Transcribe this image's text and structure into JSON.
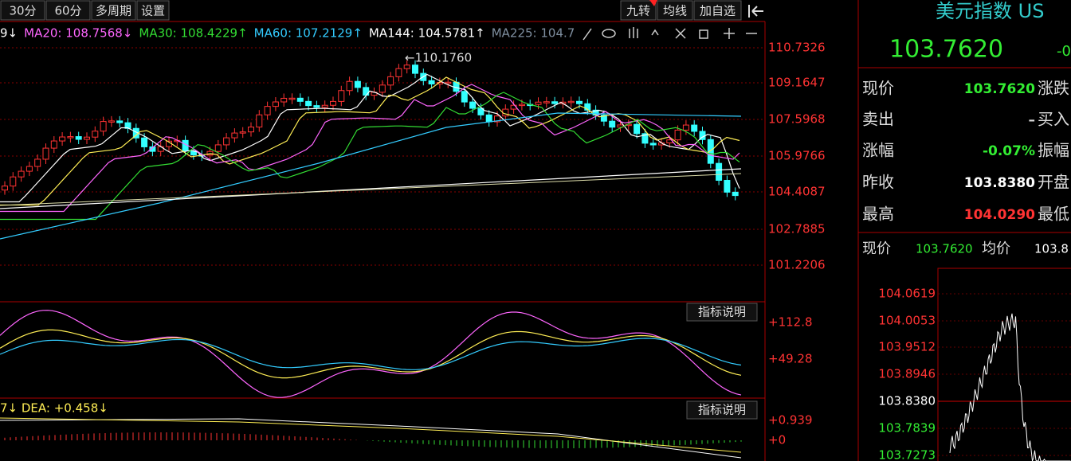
{
  "toolbar": {
    "left": [
      "30分",
      "60分",
      "多周期",
      "设置"
    ],
    "right": [
      "九转",
      "均线",
      "加自选"
    ]
  },
  "ma_legend": [
    {
      "text": "9↓",
      "color": "#ffffff"
    },
    {
      "text": "MA20: 108.7568↓",
      "color": "#ff66ff"
    },
    {
      "text": "MA30: 108.4229↑",
      "color": "#33dd33"
    },
    {
      "text": "MA60: 107.2129↑",
      "color": "#33ccff"
    },
    {
      "text": "MA144: 104.5781↑",
      "color": "#ffffff"
    },
    {
      "text": "MA225: 104.7",
      "color": "#7f8fa0"
    }
  ],
  "price_axis": [
    "110.7326",
    "109.1647",
    "107.5968",
    "105.9766",
    "104.4087",
    "102.7885",
    "101.2206"
  ],
  "annotation": "←110.1760",
  "indicator_1": {
    "button": "指标说明",
    "axis": [
      "+112.8",
      "+49.28"
    ]
  },
  "indicator_2": {
    "legend": "7↓ DEA: +0.458↓",
    "button": "指标说明",
    "axis": [
      "+0.939",
      "+0"
    ]
  },
  "quote": {
    "title": "美元指数 US",
    "price": "103.7620",
    "change": "-0",
    "rows": [
      {
        "label": "现价",
        "value": "103.7620",
        "next": "涨跌",
        "color": "#33ee33"
      },
      {
        "label": "卖出",
        "value": "–",
        "next": "买入",
        "color": "#dddddd"
      },
      {
        "label": "涨幅",
        "value": "-0.07%",
        "next": "振幅",
        "color": "#33ee33"
      },
      {
        "label": "昨收",
        "value": "103.8380",
        "next": "开盘",
        "color": "#ffffff"
      },
      {
        "label": "最高",
        "value": "104.0290",
        "next": "最低",
        "color": "#ff3333"
      }
    ],
    "mini_header": {
      "label": "现价",
      "value": "103.7620",
      "avg_label": "均价",
      "avg": "103.8"
    },
    "mini_axis": [
      "104.0619",
      "104.0053",
      "103.9512",
      "103.8946",
      "103.8380",
      "103.7839",
      "103.7273"
    ]
  }
}
